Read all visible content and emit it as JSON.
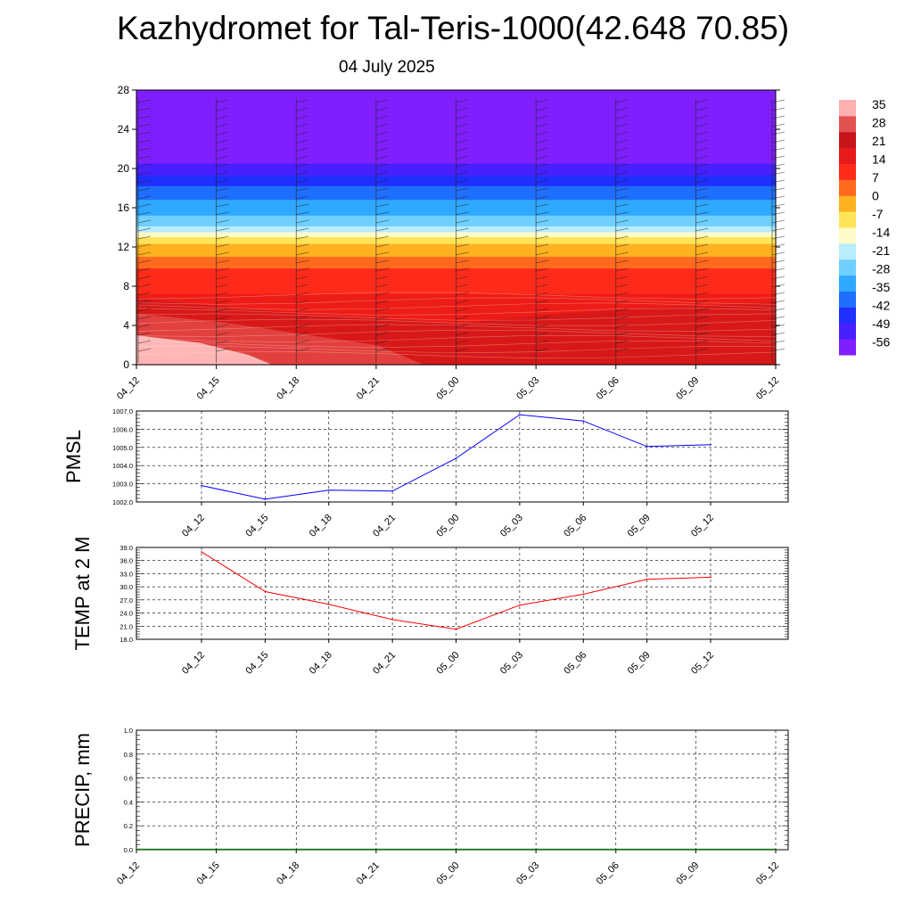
{
  "header": {
    "title": "Kazhydromet for Tal-Teris-1000(42.648 70.85)",
    "date": "04 July 2025"
  },
  "chart_data": [
    {
      "type": "heatmap",
      "name": "vertical-section",
      "x_tick_labels": [
        "04_12",
        "04_15",
        "04_18",
        "04_21",
        "05_00",
        "05_03",
        "05_06",
        "05_09",
        "05_12"
      ],
      "y_ticks": [
        0,
        4,
        8,
        12,
        16,
        20,
        24,
        28
      ],
      "ylim": [
        0,
        28
      ],
      "colorbar": {
        "labels": [
          "35",
          "28",
          "21",
          "14",
          "7",
          "0",
          "-7",
          "-14",
          "-21",
          "-28",
          "-35",
          "-42",
          "-49",
          "-56"
        ],
        "colors": [
          "#7f1fff",
          "#4a1fff",
          "#1f2fff",
          "#1f6fff",
          "#2fa8ff",
          "#6fd0ff",
          "#b8ecff",
          "#fffbc8",
          "#ffe45a",
          "#ffb21f",
          "#ff6a1f",
          "#ff2a1a",
          "#e81a1a",
          "#c8141a",
          "#e2524f",
          "#ffb0b0"
        ],
        "colors_order": "bottom-to-top"
      },
      "bands": [
        {
          "level": 28,
          "color": "#7f1fff"
        },
        {
          "level": 21.3,
          "color": "#7f1fff"
        },
        {
          "level": 20.5,
          "color": "#4a1fff"
        },
        {
          "level": 19.3,
          "color": "#1f2fff"
        },
        {
          "level": 18.2,
          "color": "#1f6fff"
        },
        {
          "level": 16.8,
          "color": "#2fa8ff"
        },
        {
          "level": 15.2,
          "color": "#6fd0ff"
        },
        {
          "level": 14.1,
          "color": "#b8ecff"
        },
        {
          "level": 13.5,
          "color": "#fffbc8"
        },
        {
          "level": 13.0,
          "color": "#ffe45a"
        },
        {
          "level": 12.3,
          "color": "#ffb21f"
        },
        {
          "level": 11.0,
          "color": "#ff6a1f"
        },
        {
          "level": 9.8,
          "color": "#ff2a1a"
        },
        {
          "level": 7.2,
          "color": "#ee1c16"
        },
        {
          "level": 0,
          "color": "#ee1c16"
        }
      ],
      "surface_blobs": [
        {
          "shape": [
            [
              0,
              6.8
            ],
            [
              1,
              6.0
            ],
            [
              2,
              5.2
            ],
            [
              3,
              4.8
            ],
            [
              4,
              4.2
            ],
            [
              5,
              5.0
            ],
            [
              6,
              5.6
            ],
            [
              7,
              6.0
            ],
            [
              8,
              6.4
            ]
          ],
          "color": "#d81818"
        },
        {
          "shape": [
            [
              0,
              5.2
            ],
            [
              1,
              4.4
            ],
            [
              2,
              3.2
            ],
            [
              3,
              2.0
            ],
            [
              3.6,
              0
            ]
          ],
          "color": "#e2403e"
        },
        {
          "shape": [
            [
              0,
              3.0
            ],
            [
              0.8,
              2.2
            ],
            [
              1.4,
              1.0
            ],
            [
              1.7,
              0
            ]
          ],
          "color": "#ffb6b6"
        }
      ]
    },
    {
      "type": "line",
      "name": "pmsl",
      "ylabel": "PMSL",
      "x": [
        "04_12",
        "04_15",
        "04_18",
        "04_21",
        "05_00",
        "05_03",
        "05_06",
        "05_09",
        "05_12"
      ],
      "values": [
        1002.9,
        1002.15,
        1002.65,
        1002.6,
        1004.4,
        1006.8,
        1006.45,
        1005.05,
        1005.15
      ],
      "ylim": [
        1002.0,
        1007.0
      ],
      "y_ticks": [
        "1002.0",
        "1003.0",
        "1004.0",
        "1005.0",
        "1006.0",
        "1007.0"
      ],
      "color": "#0000ff",
      "grid": true
    },
    {
      "type": "line",
      "name": "temp2m",
      "ylabel": "TEMP at 2 M",
      "x": [
        "04_12",
        "04_15",
        "04_18",
        "04_21",
        "05_00",
        "05_03",
        "05_06",
        "05_09",
        "05_12"
      ],
      "values": [
        38.0,
        28.9,
        26.0,
        22.5,
        20.3,
        25.8,
        28.3,
        31.7,
        32.2
      ],
      "ylim": [
        18.0,
        39.0
      ],
      "y_ticks": [
        "18.0",
        "21.0",
        "24.0",
        "27.0",
        "30.0",
        "33.0",
        "36.0",
        "39.0"
      ],
      "color": "#ff0000",
      "grid": true
    },
    {
      "type": "bar",
      "name": "precip",
      "ylabel": "PRECIP, mm",
      "x": [
        "04_12",
        "04_15",
        "04_18",
        "04_21",
        "05_00",
        "05_03",
        "05_06",
        "05_09",
        "05_12"
      ],
      "values": [
        0,
        0,
        0,
        0,
        0,
        0,
        0,
        0,
        0
      ],
      "ylim": [
        0.0,
        1.0
      ],
      "y_ticks": [
        "0.0",
        "0.2",
        "0.4",
        "0.6",
        "0.8",
        "1.0"
      ],
      "color": "#008000",
      "grid": true
    }
  ]
}
